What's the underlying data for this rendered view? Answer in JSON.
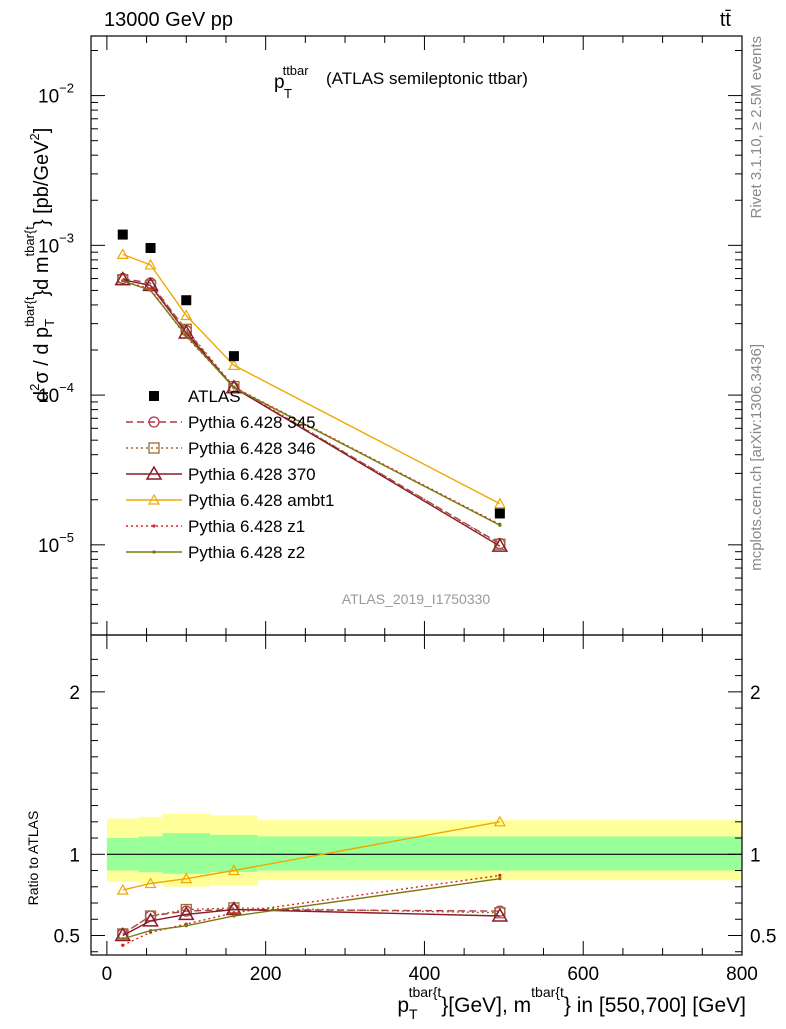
{
  "header": {
    "energy_label": "13000 GeV pp",
    "process_label": "tt̄"
  },
  "side_labels": {
    "rivet": "Rivet 3.1.10, ≥ 2.5M events",
    "source": "mcplots.cern.ch [arXiv:1306.3436]"
  },
  "plot_title": {
    "main": "p",
    "sub": "T",
    "sup": "ttbar",
    "rest": "(ATLAS semileptonic ttbar)"
  },
  "analysis_id": "ATLAS_2019_I1750330",
  "colors": {
    "atlas": "#000000",
    "p345": "#b03a48",
    "p346": "#9a6a35",
    "p370": "#8b1a2b",
    "ambt1": "#f0a800",
    "z1": "#e02020",
    "z2": "#7a7a10",
    "band_inner": "#99ff99",
    "band_outer": "#ffff99"
  },
  "chart_data": [
    {
      "type": "scatter",
      "panel": "main",
      "yscale": "log",
      "ylim": [
        2.5e-06,
        0.025
      ],
      "xlim": [
        -20,
        800
      ],
      "ylabel": {
        "a": "d",
        "b": "2",
        "c": "σ / d p",
        "d": "T",
        "e": "tbar{t",
        "f": "}d m",
        "g": "tbar{t",
        "h": "} [pb/GeV",
        "i": "2",
        "j": "]"
      },
      "yticks": [
        {
          "value": 1e-05,
          "base": "10",
          "exp": "−5"
        },
        {
          "value": 0.0001,
          "base": "10",
          "exp": "−4"
        },
        {
          "value": 0.001,
          "base": "10",
          "exp": "−3"
        },
        {
          "value": 0.01,
          "base": "10",
          "exp": "−2"
        }
      ],
      "x": [
        20,
        55,
        100,
        160,
        495
      ],
      "series": [
        {
          "name": "ATLAS",
          "key": "atlas",
          "marker": "square",
          "line": "none",
          "values": [
            0.00118,
            0.00096,
            0.00043,
            0.000182,
            1.62e-05
          ]
        },
        {
          "name": "Pythia 6.428 345",
          "key": "p345",
          "marker": "circle",
          "line": "dashed",
          "values": [
            0.0006,
            0.00056,
            0.00027,
            0.000112,
            1.02e-05
          ]
        },
        {
          "name": "Pythia 6.428 346",
          "key": "p346",
          "marker": "square-open",
          "line": "dotted",
          "values": [
            0.00059,
            0.00054,
            0.000275,
            0.000114,
            1.01e-05
          ]
        },
        {
          "name": "Pythia 6.428 370",
          "key": "p370",
          "marker": "triangle",
          "line": "solid",
          "values": [
            0.00059,
            0.00054,
            0.00026,
            0.000112,
            9.8e-06
          ]
        },
        {
          "name": "Pythia 6.428 ambt1",
          "key": "ambt1",
          "marker": "triangle-small",
          "line": "solid",
          "values": [
            0.00087,
            0.00074,
            0.00034,
            0.000158,
            1.88e-05
          ]
        },
        {
          "name": "Pythia 6.428 z1",
          "key": "z1",
          "marker": "dot",
          "line": "dotted",
          "values": [
            0.00058,
            0.00051,
            0.000245,
            0.000113,
            1.37e-05
          ]
        },
        {
          "name": "Pythia 6.428 z2",
          "key": "z2",
          "marker": "dot",
          "line": "solid",
          "values": [
            0.00058,
            0.0005,
            0.00025,
            0.000112,
            1.35e-05
          ]
        }
      ]
    },
    {
      "type": "line",
      "panel": "ratio",
      "ylim": [
        0.38,
        2.35
      ],
      "xlim": [
        -20,
        800
      ],
      "ylabel": "Ratio to ATLAS",
      "yticks": [
        0.5,
        1,
        2
      ],
      "xticks": [
        0,
        200,
        400,
        600,
        800
      ],
      "xlabel": {
        "a": "p",
        "b": "T",
        "c": "tbar{t",
        "d": "}[GeV], m",
        "e": "tbar{t",
        "f": "} in [550,700] [GeV]"
      },
      "bands": {
        "edges": [
          0,
          40,
          70,
          130,
          190,
          800
        ],
        "inner": [
          [
            0.9,
            1.1
          ],
          [
            0.89,
            1.11
          ],
          [
            0.88,
            1.13
          ],
          [
            0.89,
            1.12
          ],
          [
            0.9,
            1.11
          ]
        ],
        "outer": [
          [
            0.83,
            1.22
          ],
          [
            0.82,
            1.23
          ],
          [
            0.8,
            1.25
          ],
          [
            0.81,
            1.24
          ],
          [
            0.84,
            1.21
          ]
        ]
      },
      "x": [
        20,
        55,
        100,
        160,
        495
      ],
      "series": [
        {
          "name": "Pythia 6.428 345",
          "key": "p345",
          "marker": "circle",
          "line": "dashed",
          "values": [
            0.51,
            0.62,
            0.65,
            0.66,
            0.65
          ]
        },
        {
          "name": "Pythia 6.428 346",
          "key": "p346",
          "marker": "square-open",
          "line": "dotted",
          "values": [
            0.51,
            0.62,
            0.66,
            0.67,
            0.64
          ]
        },
        {
          "name": "Pythia 6.428 370",
          "key": "p370",
          "marker": "triangle",
          "line": "solid",
          "values": [
            0.5,
            0.59,
            0.63,
            0.66,
            0.62
          ]
        },
        {
          "name": "Pythia 6.428 ambt1",
          "key": "ambt1",
          "marker": "triangle-small",
          "line": "solid",
          "values": [
            0.78,
            0.82,
            0.85,
            0.9,
            1.2
          ]
        },
        {
          "name": "Pythia 6.428 z1",
          "key": "z1",
          "marker": "dot",
          "line": "dotted",
          "values": [
            0.44,
            0.52,
            0.57,
            0.64,
            0.87
          ]
        },
        {
          "name": "Pythia 6.428 z2",
          "key": "z2",
          "marker": "dot",
          "line": "solid",
          "values": [
            0.48,
            0.53,
            0.56,
            0.62,
            0.85
          ]
        }
      ]
    }
  ]
}
